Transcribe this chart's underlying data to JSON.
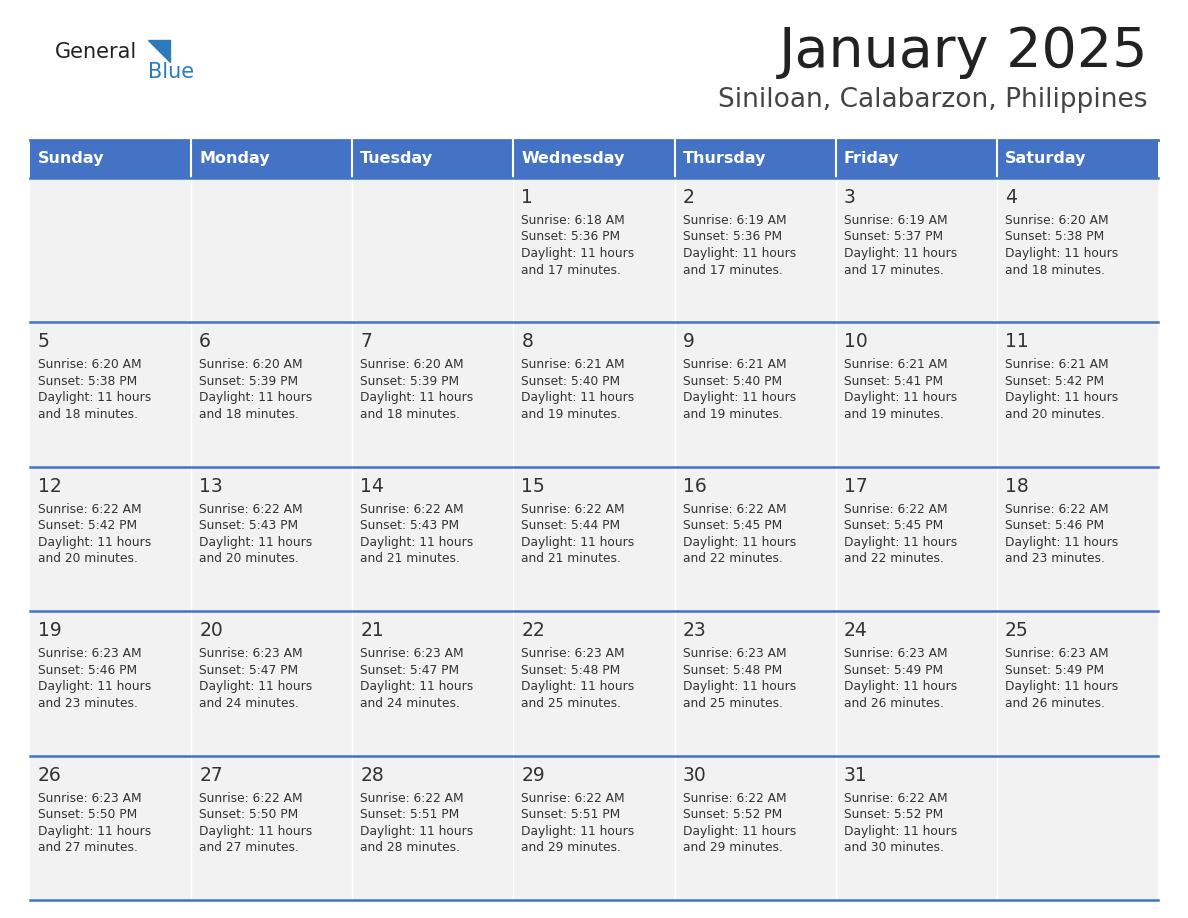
{
  "title": "January 2025",
  "subtitle": "Siniloan, Calabarzon, Philippines",
  "days_of_week": [
    "Sunday",
    "Monday",
    "Tuesday",
    "Wednesday",
    "Thursday",
    "Friday",
    "Saturday"
  ],
  "header_bg": "#4472C4",
  "header_text": "#FFFFFF",
  "cell_bg": "#F2F2F2",
  "cell_text": "#333333",
  "border_color": "#4472C4",
  "title_color": "#222222",
  "subtitle_color": "#444444",
  "logo_general_color": "#222222",
  "logo_blue_color": "#2B7BBD",
  "calendar_data": [
    [
      {
        "day": "",
        "sunrise": "",
        "sunset": "",
        "daylight": ""
      },
      {
        "day": "",
        "sunrise": "",
        "sunset": "",
        "daylight": ""
      },
      {
        "day": "",
        "sunrise": "",
        "sunset": "",
        "daylight": ""
      },
      {
        "day": "1",
        "sunrise": "6:18 AM",
        "sunset": "5:36 PM",
        "daylight": "11 hours and 17 minutes."
      },
      {
        "day": "2",
        "sunrise": "6:19 AM",
        "sunset": "5:36 PM",
        "daylight": "11 hours and 17 minutes."
      },
      {
        "day": "3",
        "sunrise": "6:19 AM",
        "sunset": "5:37 PM",
        "daylight": "11 hours and 17 minutes."
      },
      {
        "day": "4",
        "sunrise": "6:20 AM",
        "sunset": "5:38 PM",
        "daylight": "11 hours and 18 minutes."
      }
    ],
    [
      {
        "day": "5",
        "sunrise": "6:20 AM",
        "sunset": "5:38 PM",
        "daylight": "11 hours and 18 minutes."
      },
      {
        "day": "6",
        "sunrise": "6:20 AM",
        "sunset": "5:39 PM",
        "daylight": "11 hours and 18 minutes."
      },
      {
        "day": "7",
        "sunrise": "6:20 AM",
        "sunset": "5:39 PM",
        "daylight": "11 hours and 18 minutes."
      },
      {
        "day": "8",
        "sunrise": "6:21 AM",
        "sunset": "5:40 PM",
        "daylight": "11 hours and 19 minutes."
      },
      {
        "day": "9",
        "sunrise": "6:21 AM",
        "sunset": "5:40 PM",
        "daylight": "11 hours and 19 minutes."
      },
      {
        "day": "10",
        "sunrise": "6:21 AM",
        "sunset": "5:41 PM",
        "daylight": "11 hours and 19 minutes."
      },
      {
        "day": "11",
        "sunrise": "6:21 AM",
        "sunset": "5:42 PM",
        "daylight": "11 hours and 20 minutes."
      }
    ],
    [
      {
        "day": "12",
        "sunrise": "6:22 AM",
        "sunset": "5:42 PM",
        "daylight": "11 hours and 20 minutes."
      },
      {
        "day": "13",
        "sunrise": "6:22 AM",
        "sunset": "5:43 PM",
        "daylight": "11 hours and 20 minutes."
      },
      {
        "day": "14",
        "sunrise": "6:22 AM",
        "sunset": "5:43 PM",
        "daylight": "11 hours and 21 minutes."
      },
      {
        "day": "15",
        "sunrise": "6:22 AM",
        "sunset": "5:44 PM",
        "daylight": "11 hours and 21 minutes."
      },
      {
        "day": "16",
        "sunrise": "6:22 AM",
        "sunset": "5:45 PM",
        "daylight": "11 hours and 22 minutes."
      },
      {
        "day": "17",
        "sunrise": "6:22 AM",
        "sunset": "5:45 PM",
        "daylight": "11 hours and 22 minutes."
      },
      {
        "day": "18",
        "sunrise": "6:22 AM",
        "sunset": "5:46 PM",
        "daylight": "11 hours and 23 minutes."
      }
    ],
    [
      {
        "day": "19",
        "sunrise": "6:23 AM",
        "sunset": "5:46 PM",
        "daylight": "11 hours and 23 minutes."
      },
      {
        "day": "20",
        "sunrise": "6:23 AM",
        "sunset": "5:47 PM",
        "daylight": "11 hours and 24 minutes."
      },
      {
        "day": "21",
        "sunrise": "6:23 AM",
        "sunset": "5:47 PM",
        "daylight": "11 hours and 24 minutes."
      },
      {
        "day": "22",
        "sunrise": "6:23 AM",
        "sunset": "5:48 PM",
        "daylight": "11 hours and 25 minutes."
      },
      {
        "day": "23",
        "sunrise": "6:23 AM",
        "sunset": "5:48 PM",
        "daylight": "11 hours and 25 minutes."
      },
      {
        "day": "24",
        "sunrise": "6:23 AM",
        "sunset": "5:49 PM",
        "daylight": "11 hours and 26 minutes."
      },
      {
        "day": "25",
        "sunrise": "6:23 AM",
        "sunset": "5:49 PM",
        "daylight": "11 hours and 26 minutes."
      }
    ],
    [
      {
        "day": "26",
        "sunrise": "6:23 AM",
        "sunset": "5:50 PM",
        "daylight": "11 hours and 27 minutes."
      },
      {
        "day": "27",
        "sunrise": "6:22 AM",
        "sunset": "5:50 PM",
        "daylight": "11 hours and 27 minutes."
      },
      {
        "day": "28",
        "sunrise": "6:22 AM",
        "sunset": "5:51 PM",
        "daylight": "11 hours and 28 minutes."
      },
      {
        "day": "29",
        "sunrise": "6:22 AM",
        "sunset": "5:51 PM",
        "daylight": "11 hours and 29 minutes."
      },
      {
        "day": "30",
        "sunrise": "6:22 AM",
        "sunset": "5:52 PM",
        "daylight": "11 hours and 29 minutes."
      },
      {
        "day": "31",
        "sunrise": "6:22 AM",
        "sunset": "5:52 PM",
        "daylight": "11 hours and 30 minutes."
      },
      {
        "day": "",
        "sunrise": "",
        "sunset": "",
        "daylight": ""
      }
    ]
  ]
}
